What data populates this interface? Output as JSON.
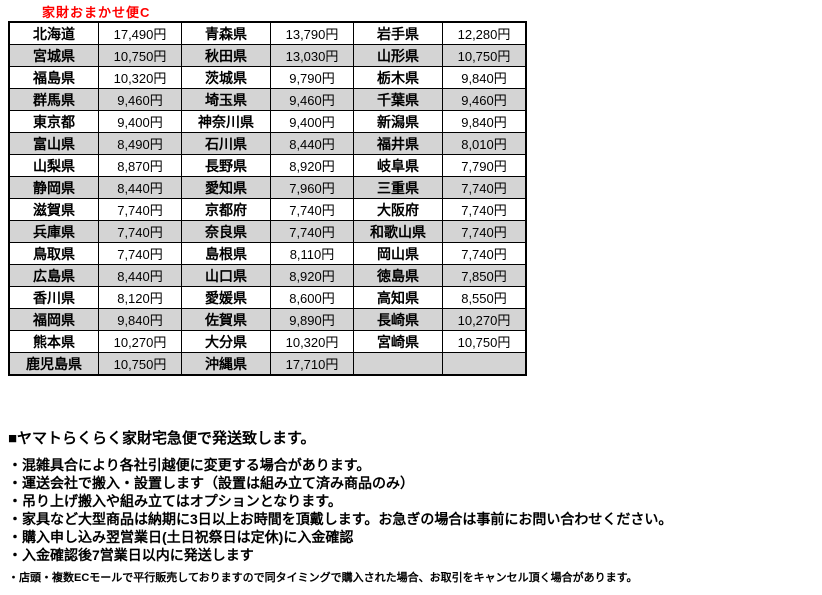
{
  "title": "家財おまかせ便C",
  "accent_color": "#ff0000",
  "row_alt_color": "#d4d4d4",
  "table": {
    "rows": [
      [
        "北海道",
        "17,490円",
        "青森県",
        "13,790円",
        "岩手県",
        "12,280円"
      ],
      [
        "宮城県",
        "10,750円",
        "秋田県",
        "13,030円",
        "山形県",
        "10,750円"
      ],
      [
        "福島県",
        "10,320円",
        "茨城県",
        "9,790円",
        "栃木県",
        "9,840円"
      ],
      [
        "群馬県",
        "9,460円",
        "埼玉県",
        "9,460円",
        "千葉県",
        "9,460円"
      ],
      [
        "東京都",
        "9,400円",
        "神奈川県",
        "9,400円",
        "新潟県",
        "9,840円"
      ],
      [
        "富山県",
        "8,490円",
        "石川県",
        "8,440円",
        "福井県",
        "8,010円"
      ],
      [
        "山梨県",
        "8,870円",
        "長野県",
        "8,920円",
        "岐阜県",
        "7,790円"
      ],
      [
        "静岡県",
        "8,440円",
        "愛知県",
        "7,960円",
        "三重県",
        "7,740円"
      ],
      [
        "滋賀県",
        "7,740円",
        "京都府",
        "7,740円",
        "大阪府",
        "7,740円"
      ],
      [
        "兵庫県",
        "7,740円",
        "奈良県",
        "7,740円",
        "和歌山県",
        "7,740円"
      ],
      [
        "鳥取県",
        "7,740円",
        "島根県",
        "8,110円",
        "岡山県",
        "7,740円"
      ],
      [
        "広島県",
        "8,440円",
        "山口県",
        "8,920円",
        "徳島県",
        "7,850円"
      ],
      [
        "香川県",
        "8,120円",
        "愛媛県",
        "8,600円",
        "高知県",
        "8,550円"
      ],
      [
        "福岡県",
        "9,840円",
        "佐賀県",
        "9,890円",
        "長崎県",
        "10,270円"
      ],
      [
        "熊本県",
        "10,270円",
        "大分県",
        "10,320円",
        "宮崎県",
        "10,750円"
      ],
      [
        "鹿児島県",
        "10,750円",
        "沖縄県",
        "17,710円",
        "",
        ""
      ]
    ]
  },
  "notes": {
    "heading": "■ヤマトらくらく家財宅急便で発送致します。",
    "bullets": [
      "・混雑具合により各社引越便に変更する場合があります。",
      "・運送会社で搬入・設置します（設置は組み立て済み商品のみ）",
      "・吊り上げ搬入や組み立てはオプションとなります。",
      "・家具など大型商品は納期に3日以上お時間を頂戴します。お急ぎの場合は事前にお問い合わせください。",
      "・購入申し込み翌営業日(土日祝祭日は定休)に入金確認",
      "・入金確認後7営業日以内に発送します"
    ],
    "footnote": "・店頭・複数ECモールで平行販売しておりますので同タイミングで購入された場合、お取引をキャンセル頂く場合があります。"
  }
}
